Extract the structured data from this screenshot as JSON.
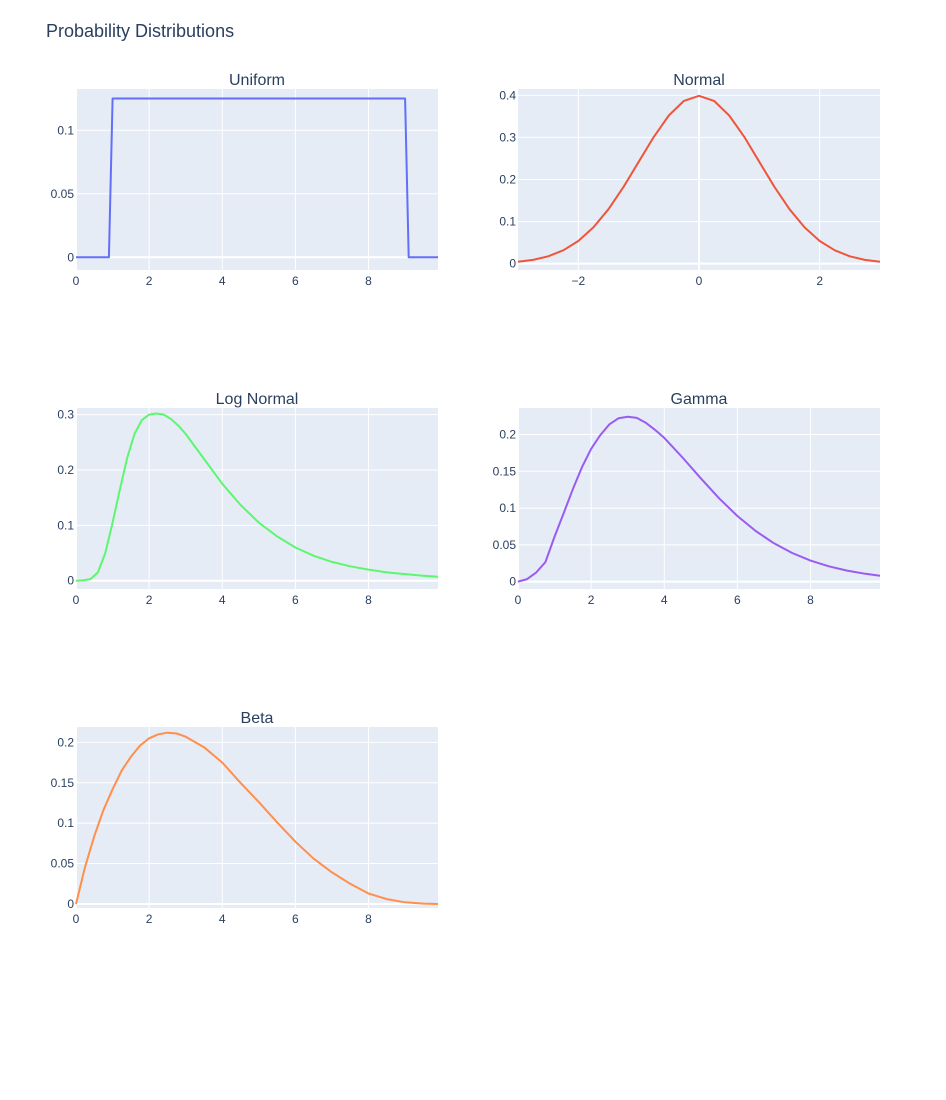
{
  "title": "Probability Distributions",
  "chart_data": [
    {
      "type": "line",
      "title": "Uniform",
      "color": "#636efa",
      "xlim": [
        0,
        9.9
      ],
      "ylim": [
        -0.01,
        0.1325
      ],
      "xticks": [
        {
          "v": 0,
          "t": "0"
        },
        {
          "v": 2,
          "t": "2"
        },
        {
          "v": 4,
          "t": "4"
        },
        {
          "v": 6,
          "t": "6"
        },
        {
          "v": 8,
          "t": "8"
        }
      ],
      "yticks": [
        {
          "v": 0,
          "t": "0"
        },
        {
          "v": 0.05,
          "t": "0.05"
        },
        {
          "v": 0.1,
          "t": "0.1"
        }
      ],
      "x": [
        0,
        0.9,
        1.0,
        9.0,
        9.1,
        9.9
      ],
      "y": [
        0,
        0,
        0.125,
        0.125,
        0,
        0
      ]
    },
    {
      "type": "line",
      "title": "Normal",
      "color": "#ef553b",
      "xlim": [
        -3,
        3
      ],
      "ylim": [
        -0.015,
        0.415
      ],
      "xticks": [
        {
          "v": -2,
          "t": "−2"
        },
        {
          "v": 0,
          "t": "0"
        },
        {
          "v": 2,
          "t": "2"
        }
      ],
      "yticks": [
        {
          "v": 0,
          "t": "0"
        },
        {
          "v": 0.1,
          "t": "0.1"
        },
        {
          "v": 0.2,
          "t": "0.2"
        },
        {
          "v": 0.3,
          "t": "0.3"
        },
        {
          "v": 0.4,
          "t": "0.4"
        }
      ],
      "x": [
        -3,
        -2.75,
        -2.5,
        -2.25,
        -2,
        -1.75,
        -1.5,
        -1.25,
        -1,
        -0.75,
        -0.5,
        -0.25,
        0,
        0.25,
        0.5,
        0.75,
        1,
        1.25,
        1.5,
        1.75,
        2,
        2.25,
        2.5,
        2.75,
        3
      ],
      "y": [
        0.0044,
        0.0091,
        0.0175,
        0.0317,
        0.054,
        0.0863,
        0.1295,
        0.1826,
        0.242,
        0.3011,
        0.3521,
        0.3867,
        0.3989,
        0.3867,
        0.3521,
        0.3011,
        0.242,
        0.1826,
        0.1295,
        0.0863,
        0.054,
        0.0317,
        0.0175,
        0.0091,
        0.0044
      ]
    },
    {
      "type": "line",
      "title": "Log Normal",
      "color": "#00cc96",
      "stroke": "#5cf76f",
      "xlim": [
        0,
        9.9
      ],
      "ylim": [
        -0.015,
        0.312
      ],
      "xticks": [
        {
          "v": 0,
          "t": "0"
        },
        {
          "v": 2,
          "t": "2"
        },
        {
          "v": 4,
          "t": "4"
        },
        {
          "v": 6,
          "t": "6"
        },
        {
          "v": 8,
          "t": "8"
        }
      ],
      "yticks": [
        {
          "v": 0,
          "t": "0"
        },
        {
          "v": 0.1,
          "t": "0.1"
        },
        {
          "v": 0.2,
          "t": "0.2"
        },
        {
          "v": 0.3,
          "t": "0.3"
        }
      ],
      "x": [
        0,
        0.2,
        0.4,
        0.6,
        0.8,
        1.0,
        1.2,
        1.4,
        1.6,
        1.8,
        2.0,
        2.2,
        2.4,
        2.6,
        2.8,
        3.0,
        3.5,
        4.0,
        4.5,
        5.0,
        5.5,
        6.0,
        6.5,
        7.0,
        7.5,
        8.0,
        8.5,
        9.0,
        9.5,
        9.9
      ],
      "y": [
        0,
        0.0005,
        0.003,
        0.015,
        0.05,
        0.105,
        0.165,
        0.222,
        0.265,
        0.29,
        0.3,
        0.302,
        0.3,
        0.292,
        0.28,
        0.265,
        0.22,
        0.175,
        0.137,
        0.105,
        0.08,
        0.06,
        0.045,
        0.034,
        0.026,
        0.02,
        0.015,
        0.012,
        0.009,
        0.007
      ]
    },
    {
      "type": "line",
      "title": "Gamma",
      "color": "#ab63fa",
      "stroke": "#9a5bf2",
      "xlim": [
        0,
        9.9
      ],
      "ylim": [
        -0.01,
        0.236
      ],
      "xticks": [
        {
          "v": 0,
          "t": "0"
        },
        {
          "v": 2,
          "t": "2"
        },
        {
          "v": 4,
          "t": "4"
        },
        {
          "v": 6,
          "t": "6"
        },
        {
          "v": 8,
          "t": "8"
        }
      ],
      "yticks": [
        {
          "v": 0,
          "t": "0"
        },
        {
          "v": 0.05,
          "t": "0.05"
        },
        {
          "v": 0.1,
          "t": "0.1"
        },
        {
          "v": 0.15,
          "t": "0.15"
        },
        {
          "v": 0.2,
          "t": "0.2"
        }
      ],
      "x": [
        0,
        0.25,
        0.5,
        0.75,
        1.0,
        1.25,
        1.5,
        1.75,
        2.0,
        2.25,
        2.5,
        2.75,
        3.0,
        3.25,
        3.5,
        3.75,
        4.0,
        4.5,
        5.0,
        5.5,
        6.0,
        6.5,
        7.0,
        7.5,
        8.0,
        8.5,
        9.0,
        9.5,
        9.9
      ],
      "y": [
        0,
        0.0035,
        0.0126,
        0.0266,
        0.0613,
        0.0932,
        0.1255,
        0.1557,
        0.1804,
        0.1991,
        0.2138,
        0.2221,
        0.224,
        0.2225,
        0.2158,
        0.2063,
        0.1954,
        0.1687,
        0.1404,
        0.1133,
        0.0892,
        0.0688,
        0.0521,
        0.0389,
        0.0286,
        0.0208,
        0.015,
        0.0107,
        0.008
      ]
    },
    {
      "type": "line",
      "title": "Beta",
      "color": "#ffa15a",
      "stroke": "#ff8f4a",
      "xlim": [
        0,
        9.9
      ],
      "ylim": [
        -0.005,
        0.219
      ],
      "xticks": [
        {
          "v": 0,
          "t": "0"
        },
        {
          "v": 2,
          "t": "2"
        },
        {
          "v": 4,
          "t": "4"
        },
        {
          "v": 6,
          "t": "6"
        },
        {
          "v": 8,
          "t": "8"
        }
      ],
      "yticks": [
        {
          "v": 0,
          "t": "0"
        },
        {
          "v": 0.05,
          "t": "0.05"
        },
        {
          "v": 0.1,
          "t": "0.1"
        },
        {
          "v": 0.15,
          "t": "0.15"
        },
        {
          "v": 0.2,
          "t": "0.2"
        }
      ],
      "x": [
        0,
        0.25,
        0.5,
        0.75,
        1.0,
        1.25,
        1.5,
        1.75,
        2.0,
        2.25,
        2.5,
        2.75,
        3.0,
        3.5,
        4.0,
        4.5,
        5.0,
        5.5,
        6.0,
        6.5,
        7.0,
        7.5,
        8.0,
        8.5,
        9.0,
        9.5,
        9.9
      ],
      "y": [
        0,
        0.046,
        0.084,
        0.116,
        0.142,
        0.165,
        0.182,
        0.196,
        0.205,
        0.21,
        0.212,
        0.211,
        0.207,
        0.194,
        0.175,
        0.15,
        0.126,
        0.101,
        0.077,
        0.056,
        0.039,
        0.025,
        0.013,
        0.006,
        0.002,
        0.0005,
        0
      ]
    }
  ]
}
